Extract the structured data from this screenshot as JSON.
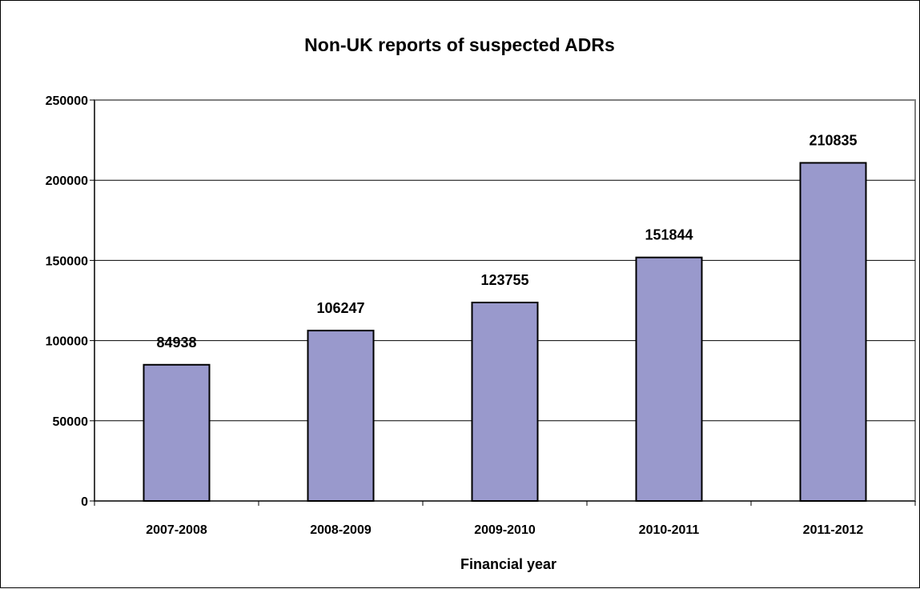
{
  "chart_data": {
    "type": "bar",
    "title": "Non-UK reports of suspected ADRs",
    "xlabel": "Financial year",
    "ylabel": "",
    "categories": [
      "2007-2008",
      "2008-2009",
      "2009-2010",
      "2010-2011",
      "2011-2012"
    ],
    "values": [
      84938,
      106247,
      123755,
      151844,
      210835
    ],
    "data_labels": [
      "84938",
      "106247",
      "123755",
      "151844",
      "210835"
    ],
    "ylim": [
      0,
      250000
    ],
    "yticks": [
      0,
      50000,
      100000,
      150000,
      200000,
      250000
    ],
    "ytick_labels": [
      "0",
      "50000",
      "100000",
      "150000",
      "200000",
      "250000"
    ],
    "grid": true,
    "legend": "none",
    "bar_color": "#9999cc",
    "bar_edge_color": "#000000"
  }
}
